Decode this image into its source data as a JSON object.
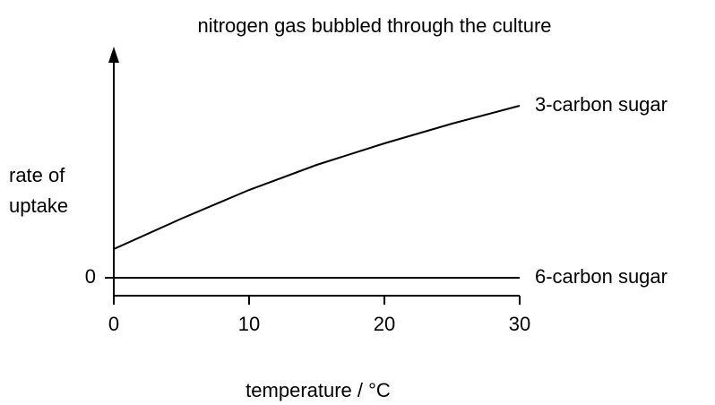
{
  "chart_data": {
    "type": "line",
    "title": "nitrogen gas bubbled through the culture",
    "xlabel": "temperature / °C",
    "ylabel": [
      "rate of",
      "uptake"
    ],
    "x": [
      0,
      5,
      10,
      15,
      20,
      25,
      30
    ],
    "series": [
      {
        "name": "3-carbon sugar",
        "color": "#000000",
        "values": [
          1.6,
          3.3,
          4.9,
          6.3,
          7.5,
          8.6,
          9.6
        ]
      },
      {
        "name": "6-carbon sugar",
        "color": "#000000",
        "values": [
          0,
          0,
          0,
          0,
          0,
          0,
          0
        ]
      }
    ],
    "xlim": [
      0,
      30
    ],
    "xticks": [
      0,
      10,
      20,
      30
    ],
    "ylim": [
      -1,
      12
    ],
    "yticks": [
      0
    ],
    "grid": false
  }
}
